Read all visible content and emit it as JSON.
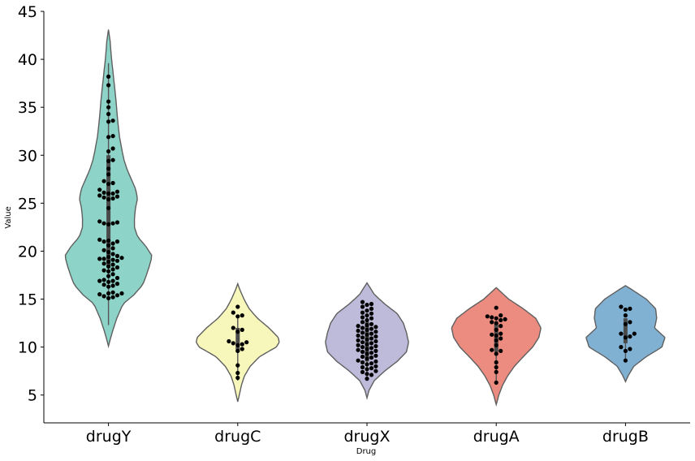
{
  "chart_data": {
    "type": "violin",
    "xlabel": "Drug",
    "ylabel": "Value",
    "categories": [
      "drugY",
      "drugC",
      "drugX",
      "drugA",
      "drugB"
    ],
    "yticks": [
      5,
      10,
      15,
      20,
      25,
      30,
      35,
      40,
      45
    ],
    "ylim": [
      2.1,
      45
    ],
    "colors": [
      "#8dd3c7",
      "#f7f7bc",
      "#bebada",
      "#ec8c80",
      "#80b1d3"
    ],
    "point_color": "#000000",
    "series": [
      {
        "category": "drugY",
        "range": [
          10.1,
          43.1
        ],
        "quartiles": [
          18.4,
          22.9,
          30.0
        ],
        "profile": [
          [
            10.1,
            0.0
          ],
          [
            11.5,
            0.07
          ],
          [
            13.0,
            0.16
          ],
          [
            14.5,
            0.28
          ],
          [
            15.5,
            0.5
          ],
          [
            16.5,
            0.66
          ],
          [
            17.5,
            0.73
          ],
          [
            18.5,
            0.79
          ],
          [
            19.5,
            0.84
          ],
          [
            20.5,
            0.72
          ],
          [
            21.5,
            0.56
          ],
          [
            22.5,
            0.5
          ],
          [
            23.5,
            0.5
          ],
          [
            24.5,
            0.52
          ],
          [
            25.5,
            0.56
          ],
          [
            26.5,
            0.52
          ],
          [
            27.5,
            0.44
          ],
          [
            28.5,
            0.36
          ],
          [
            29.5,
            0.3
          ],
          [
            30.5,
            0.26
          ],
          [
            32.0,
            0.21
          ],
          [
            34.0,
            0.17
          ],
          [
            36.0,
            0.14
          ],
          [
            38.0,
            0.1
          ],
          [
            40.0,
            0.06
          ],
          [
            42.0,
            0.03
          ],
          [
            43.1,
            0.0
          ]
        ],
        "points": [
          15.5,
          15.6,
          15.2,
          15.3,
          15.4,
          15.1,
          15.6,
          15.7,
          16.3,
          16.4,
          16.5,
          16.6,
          16.8,
          16.9,
          16.9,
          17.0,
          17.2,
          17.4,
          17.6,
          17.9,
          18.0,
          18.1,
          18.3,
          18.4,
          18.6,
          18.7,
          18.9,
          19.0,
          19.1,
          19.2,
          19.2,
          19.3,
          19.4,
          19.5,
          19.7,
          19.9,
          20.1,
          20.3,
          20.6,
          20.8,
          21.0,
          21.0,
          21.1,
          21.2,
          22.8,
          22.9,
          22.9,
          23.0,
          23.1,
          24.5,
          25.4,
          25.5,
          25.6,
          25.7,
          25.8,
          26.0,
          26.0,
          26.1,
          26.2,
          26.4,
          27.0,
          27.1,
          27.3,
          28.0,
          28.6,
          29.4,
          29.5,
          30.4,
          30.7,
          31.9,
          32.0,
          33.5,
          33.6,
          34.3,
          35.0,
          35.6,
          37.3,
          38.2
        ]
      },
      {
        "category": "drugC",
        "range": [
          4.3,
          16.6
        ],
        "quartiles": [
          9.5,
          10.3,
          12.0
        ],
        "profile": [
          [
            4.3,
            0.0
          ],
          [
            5.0,
            0.03
          ],
          [
            6.0,
            0.07
          ],
          [
            7.0,
            0.13
          ],
          [
            8.0,
            0.24
          ],
          [
            9.0,
            0.42
          ],
          [
            10.0,
            0.74
          ],
          [
            10.5,
            0.8
          ],
          [
            11.0,
            0.78
          ],
          [
            12.0,
            0.6
          ],
          [
            13.0,
            0.38
          ],
          [
            14.0,
            0.22
          ],
          [
            15.0,
            0.12
          ],
          [
            16.0,
            0.04
          ],
          [
            16.6,
            0.0
          ]
        ],
        "points": [
          6.8,
          7.3,
          8.1,
          9.6,
          9.8,
          10.2,
          10.3,
          10.4,
          10.5,
          10.6,
          11.6,
          11.8,
          12.0,
          13.2,
          13.3,
          13.6,
          14.2
        ]
      },
      {
        "category": "drugX",
        "range": [
          4.7,
          16.7
        ],
        "quartiles": [
          8.5,
          10.5,
          12.6
        ],
        "profile": [
          [
            4.7,
            0.0
          ],
          [
            5.5,
            0.04
          ],
          [
            6.5,
            0.14
          ],
          [
            7.5,
            0.34
          ],
          [
            8.5,
            0.58
          ],
          [
            9.5,
            0.76
          ],
          [
            10.5,
            0.8
          ],
          [
            11.5,
            0.76
          ],
          [
            12.5,
            0.7
          ],
          [
            13.5,
            0.58
          ],
          [
            14.5,
            0.34
          ],
          [
            15.5,
            0.14
          ],
          [
            16.7,
            0.0
          ]
        ],
        "points": [
          6.7,
          7.1,
          7.2,
          7.4,
          7.5,
          7.7,
          7.8,
          7.9,
          8.0,
          8.2,
          8.3,
          8.4,
          8.5,
          8.6,
          8.8,
          8.9,
          9.0,
          9.1,
          9.3,
          9.4,
          9.5,
          9.6,
          9.7,
          9.8,
          9.9,
          10.0,
          10.1,
          10.2,
          10.3,
          10.4,
          10.5,
          10.6,
          10.7,
          10.8,
          10.9,
          11.0,
          11.1,
          11.2,
          11.3,
          11.4,
          11.5,
          11.6,
          11.7,
          11.8,
          11.9,
          12.0,
          12.1,
          12.2,
          12.3,
          12.4,
          12.6,
          12.8,
          13.0,
          13.1,
          13.3,
          13.5,
          13.6,
          13.8,
          14.0,
          14.2,
          14.4,
          14.5,
          14.7
        ]
      },
      {
        "category": "drugA",
        "range": [
          4.0,
          16.2
        ],
        "quartiles": [
          9.5,
          11.3,
          12.5
        ],
        "profile": [
          [
            4.0,
            0.0
          ],
          [
            5.0,
            0.05
          ],
          [
            6.0,
            0.12
          ],
          [
            7.0,
            0.22
          ],
          [
            8.0,
            0.35
          ],
          [
            9.0,
            0.52
          ],
          [
            10.0,
            0.7
          ],
          [
            11.0,
            0.82
          ],
          [
            12.0,
            0.86
          ],
          [
            13.0,
            0.76
          ],
          [
            14.0,
            0.52
          ],
          [
            15.0,
            0.24
          ],
          [
            16.2,
            0.0
          ]
        ],
        "points": [
          6.3,
          7.4,
          7.9,
          8.4,
          9.3,
          9.6,
          9.7,
          10.2,
          10.7,
          10.9,
          11.2,
          11.3,
          11.4,
          11.8,
          12.2,
          12.5,
          12.6,
          12.8,
          12.9,
          13.0,
          13.1,
          13.2,
          13.3,
          14.1
        ]
      },
      {
        "category": "drugB",
        "range": [
          6.4,
          16.4
        ],
        "quartiles": [
          10.4,
          11.5,
          13.0
        ],
        "profile": [
          [
            6.4,
            0.0
          ],
          [
            7.0,
            0.05
          ],
          [
            8.0,
            0.16
          ],
          [
            9.0,
            0.4
          ],
          [
            10.0,
            0.7
          ],
          [
            11.0,
            0.76
          ],
          [
            12.0,
            0.56
          ],
          [
            13.0,
            0.6
          ],
          [
            14.0,
            0.58
          ],
          [
            15.0,
            0.4
          ],
          [
            16.0,
            0.12
          ],
          [
            16.4,
            0.0
          ]
        ],
        "points": [
          8.6,
          9.6,
          9.8,
          10.0,
          11.0,
          11.1,
          11.4,
          11.4,
          12.4,
          12.6,
          13.3,
          13.9,
          14.0,
          14.2
        ]
      }
    ]
  }
}
